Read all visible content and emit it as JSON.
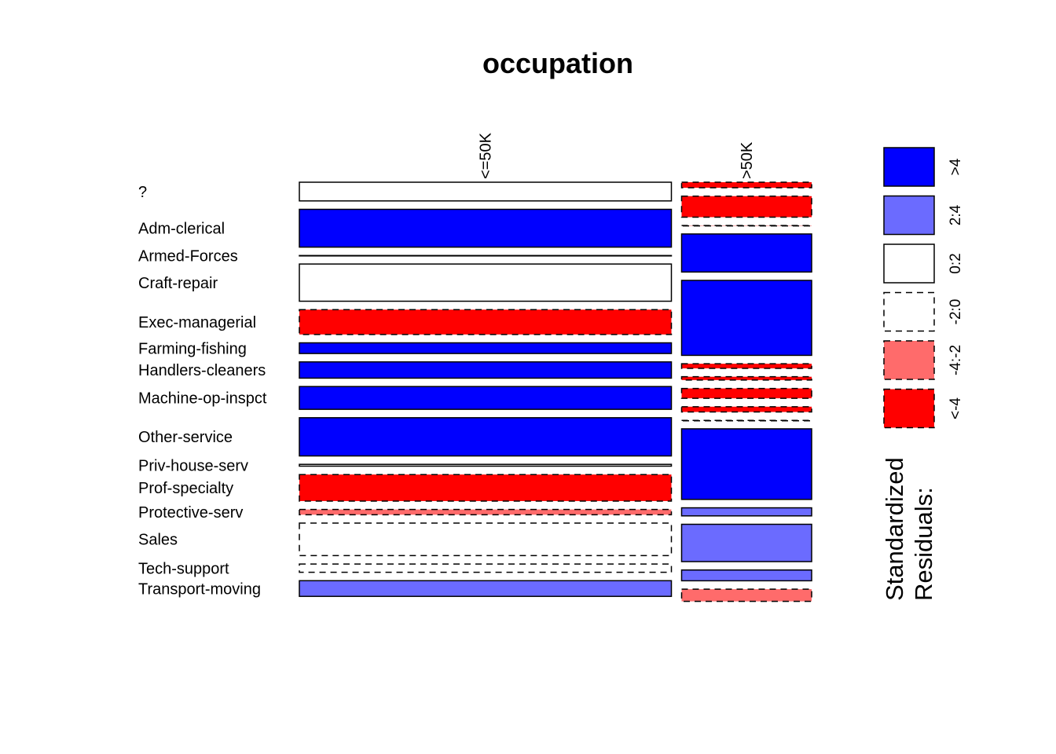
{
  "chart_data": {
    "type": "mosaic",
    "title": "occupation",
    "columns": [
      "<=50K",
      ">50K"
    ],
    "column_shares": [
      0.741,
      0.259
    ],
    "rows": [
      {
        "label": "?",
        "share": [
          0.0626,
          0.0185
        ]
      },
      {
        "label": "Adm-clerical",
        "share": [
          0.1266,
          0.0703
        ]
      },
      {
        "label": "Armed-Forces",
        "share": [
          0.0003,
          0.0001
        ]
      },
      {
        "label": "Craft-repair",
        "share": [
          0.1246,
          0.1273
        ]
      },
      {
        "label": "Exec-managerial",
        "share": [
          0.0831,
          0.251
        ]
      },
      {
        "label": "Farming-fishing",
        "share": [
          0.0357,
          0.0154
        ]
      },
      {
        "label": "Handlers-cleaners",
        "share": [
          0.0543,
          0.011
        ]
      },
      {
        "label": "Machine-op-inspct",
        "share": [
          0.0763,
          0.033
        ]
      },
      {
        "label": "Other-service",
        "share": [
          0.128,
          0.0176
        ]
      },
      {
        "label": "Priv-house-serv",
        "share": [
          0.006,
          0.0002
        ]
      },
      {
        "label": "Prof-specialty",
        "share": [
          0.0888,
          0.2364
        ]
      },
      {
        "label": "Protective-serv",
        "share": [
          0.0176,
          0.027
        ]
      },
      {
        "label": "Sales",
        "share": [
          0.1087,
          0.125
        ]
      },
      {
        "label": "Tech-support",
        "share": [
          0.0278,
          0.036
        ]
      },
      {
        "label": "Transport-moving",
        "share": [
          0.0525,
          0.0408
        ]
      }
    ],
    "residual_class": [
      [
        "0:2",
        "<-4"
      ],
      [
        ">4",
        "<-4"
      ],
      [
        "0:2",
        "-4:-2"
      ],
      [
        "0:2",
        ">4"
      ],
      [
        "<-4",
        ">4"
      ],
      [
        ">4",
        "<-4"
      ],
      [
        ">4",
        "<-4"
      ],
      [
        ">4",
        "<-4"
      ],
      [
        ">4",
        "<-4"
      ],
      [
        "0:2",
        "-2:0"
      ],
      [
        "<-4",
        ">4"
      ],
      [
        "-4:-2",
        "2:4"
      ],
      [
        "-2:0",
        "2:4"
      ],
      [
        "-2:0",
        "2:4"
      ],
      [
        "2:4",
        "-4:-2"
      ]
    ],
    "legend": {
      "title_lines": [
        "Standardized",
        "Residuals:"
      ],
      "classes": [
        {
          "label": ">4",
          "color": "#0000FF",
          "dashed": false
        },
        {
          "label": "2:4",
          "color": "#6B6BFF",
          "dashed": false
        },
        {
          "label": "0:2",
          "color": "#FFFFFF",
          "dashed": false
        },
        {
          "label": "-2:0",
          "color": "#FFFFFF",
          "dashed": true
        },
        {
          "label": "-4:-2",
          "color": "#FF6B6B",
          "dashed": true
        },
        {
          "label": "<-4",
          "color": "#FF0000",
          "dashed": true
        }
      ]
    }
  }
}
